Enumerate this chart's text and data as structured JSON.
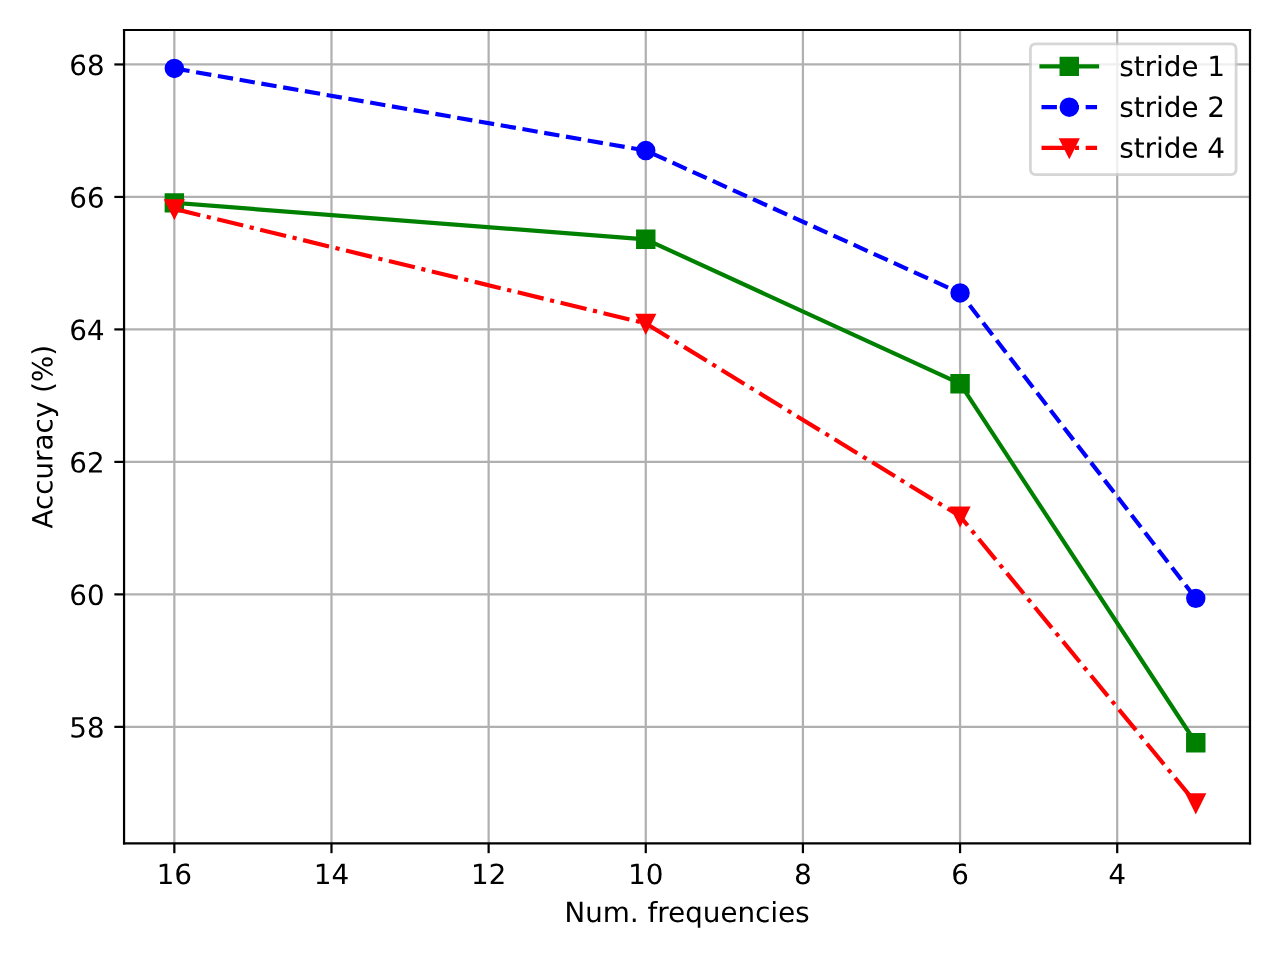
{
  "chart_data": {
    "type": "line",
    "xlabel": "Num. frequencies",
    "ylabel": "Accuracy (%)",
    "x": [
      16,
      10,
      6,
      3
    ],
    "series": [
      {
        "name": "stride 1",
        "color": "#008000",
        "marker": "square",
        "line_style": "solid",
        "values": [
          65.91,
          65.36,
          63.18,
          57.76
        ]
      },
      {
        "name": "stride 2",
        "color": "#0000ff",
        "marker": "circle",
        "line_style": "dashed",
        "values": [
          67.94,
          66.7,
          64.55,
          59.94
        ]
      },
      {
        "name": "stride 4",
        "color": "#ff0000",
        "marker": "triangle_down",
        "line_style": "dashdot",
        "values": [
          65.82,
          64.09,
          61.18,
          56.85
        ]
      }
    ],
    "xlim": [
      16.64,
      2.31
    ],
    "xticks": [
      16,
      14,
      12,
      10,
      8,
      6,
      4
    ],
    "ylim": [
      56.24,
      68.52
    ],
    "yticks": [
      58,
      60,
      62,
      64,
      66,
      68
    ],
    "grid": true,
    "legend": "top right"
  }
}
